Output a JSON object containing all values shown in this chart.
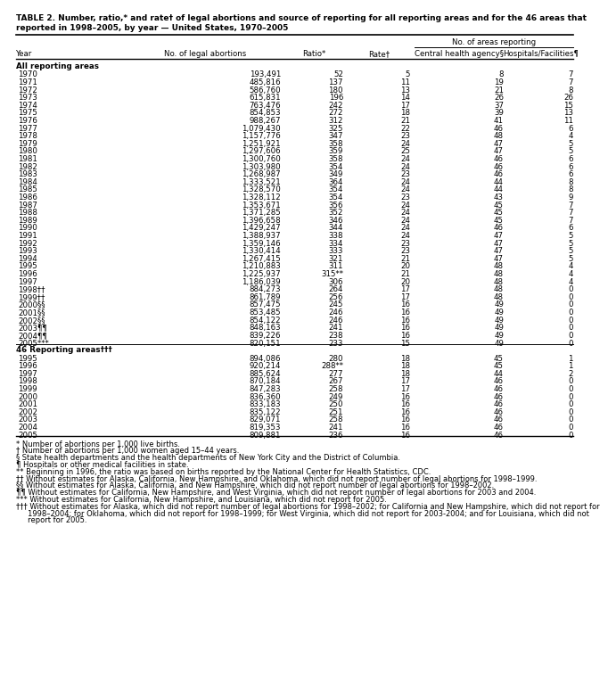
{
  "title": "TABLE 2. Number, ratio,* and rate† of legal abortions and source of reporting for all reporting areas and for the 46 areas that reported in 1998–2005, by year — United States, 1970–2005",
  "col_headers": [
    "Year",
    "No. of legal abortions",
    "Ratio*",
    "Rate†",
    "Central health agency§",
    "Hospitals/Facilities¶"
  ],
  "subheader": "No. of areas reporting",
  "section1_label": "All reporting areas",
  "section2_label": "46 Reporting areas†††",
  "all_rows": [
    [
      "1970",
      "193,491",
      "52",
      "5",
      "8",
      "7"
    ],
    [
      "1971",
      "485,816",
      "137",
      "11",
      "19",
      "7"
    ],
    [
      "1972",
      "586,760",
      "180",
      "13",
      "21",
      "8"
    ],
    [
      "1973",
      "615,831",
      "196",
      "14",
      "26",
      "26"
    ],
    [
      "1974",
      "763,476",
      "242",
      "17",
      "37",
      "15"
    ],
    [
      "1975",
      "854,853",
      "272",
      "18",
      "39",
      "13"
    ],
    [
      "1976",
      "988,267",
      "312",
      "21",
      "41",
      "11"
    ],
    [
      "1977",
      "1,079,430",
      "325",
      "22",
      "46",
      "6"
    ],
    [
      "1978",
      "1,157,776",
      "347",
      "23",
      "48",
      "4"
    ],
    [
      "1979",
      "1,251,921",
      "358",
      "24",
      "47",
      "5"
    ],
    [
      "1980",
      "1,297,606",
      "359",
      "25",
      "47",
      "5"
    ],
    [
      "1981",
      "1,300,760",
      "358",
      "24",
      "46",
      "6"
    ],
    [
      "1982",
      "1,303,980",
      "354",
      "24",
      "46",
      "6"
    ],
    [
      "1983",
      "1,268,987",
      "349",
      "23",
      "46",
      "6"
    ],
    [
      "1984",
      "1,333,521",
      "364",
      "24",
      "44",
      "8"
    ],
    [
      "1985",
      "1,328,570",
      "354",
      "24",
      "44",
      "8"
    ],
    [
      "1986",
      "1,328,112",
      "354",
      "23",
      "43",
      "9"
    ],
    [
      "1987",
      "1,353,671",
      "356",
      "24",
      "45",
      "7"
    ],
    [
      "1988",
      "1,371,285",
      "352",
      "24",
      "45",
      "7"
    ],
    [
      "1989",
      "1,396,658",
      "346",
      "24",
      "45",
      "7"
    ],
    [
      "1990",
      "1,429,247",
      "344",
      "24",
      "46",
      "6"
    ],
    [
      "1991",
      "1,388,937",
      "338",
      "24",
      "47",
      "5"
    ],
    [
      "1992",
      "1,359,146",
      "334",
      "23",
      "47",
      "5"
    ],
    [
      "1993",
      "1,330,414",
      "333",
      "23",
      "47",
      "5"
    ],
    [
      "1994",
      "1,267,415",
      "321",
      "21",
      "47",
      "5"
    ],
    [
      "1995",
      "1,210,883",
      "311",
      "20",
      "48",
      "4"
    ],
    [
      "1996",
      "1,225,937",
      "315**",
      "21",
      "48",
      "4"
    ],
    [
      "1997",
      "1,186,039",
      "306",
      "20",
      "48",
      "4"
    ],
    [
      "1998††",
      "884,273",
      "264",
      "17",
      "48",
      "0"
    ],
    [
      "1999††",
      "861,789",
      "256",
      "17",
      "48",
      "0"
    ],
    [
      "2000§§",
      "857,475",
      "245",
      "16",
      "49",
      "0"
    ],
    [
      "2001§§",
      "853,485",
      "246",
      "16",
      "49",
      "0"
    ],
    [
      "2002§§",
      "854,122",
      "246",
      "16",
      "49",
      "0"
    ],
    [
      "2003¶¶",
      "848,163",
      "241",
      "16",
      "49",
      "0"
    ],
    [
      "2004¶¶",
      "839,226",
      "238",
      "16",
      "49",
      "0"
    ],
    [
      "2005***",
      "820,151",
      "233",
      "15",
      "49",
      "0"
    ]
  ],
  "area46_rows": [
    [
      "1995",
      "894,086",
      "280",
      "18",
      "45",
      "1"
    ],
    [
      "1996",
      "920,214",
      "288**",
      "18",
      "45",
      "1"
    ],
    [
      "1997",
      "885,624",
      "277",
      "18",
      "44",
      "2"
    ],
    [
      "1998",
      "870,184",
      "267",
      "17",
      "46",
      "0"
    ],
    [
      "1999",
      "847,283",
      "258",
      "17",
      "46",
      "0"
    ],
    [
      "2000",
      "836,360",
      "249",
      "16",
      "46",
      "0"
    ],
    [
      "2001",
      "833,183",
      "250",
      "16",
      "46",
      "0"
    ],
    [
      "2002",
      "835,122",
      "251",
      "16",
      "46",
      "0"
    ],
    [
      "2003",
      "829,071",
      "258",
      "16",
      "46",
      "0"
    ],
    [
      "2004",
      "819,353",
      "241",
      "16",
      "46",
      "0"
    ],
    [
      "2005",
      "809,881",
      "236",
      "16",
      "46",
      "0"
    ]
  ],
  "footnotes": [
    "* Number of abortions per 1,000 live births.",
    "† Number of abortions per 1,000 women aged 15–44 years.",
    "§ State health departments and the health departments of New York City and the District of Columbia.",
    "¶ Hospitals or other medical facilities in state.",
    "** Beginning in 1996, the ratio was based on births reported by the National Center for Health Statistics, CDC.",
    "†† Without estimates for Alaska, California, New Hampshire, and Oklahoma, which did not report number of legal abortions for 1998–1999.",
    "§§ Without estimates for Alaska, California, and New Hampshire, which did not report number of legal abortions for 1998–2002.",
    "¶¶ Without estimates for California, New Hampshire, and West Virginia, which did not report number of legal abortions for 2003 and 2004.",
    "*** Without estimates for California, New Hampshire, and Louisiana, which did not report for 2005.",
    "††† Without estimates for Alaska, which did not report number of legal abortions for 1998–2002; for California and New Hampshire, which did not report for 1998–2004; for Oklahoma, which did not report for 1998–1999; for West Virginia, which did not report for 2003-2004; and for Louisiana, which did not report for 2005."
  ],
  "bg_color": "#ffffff"
}
